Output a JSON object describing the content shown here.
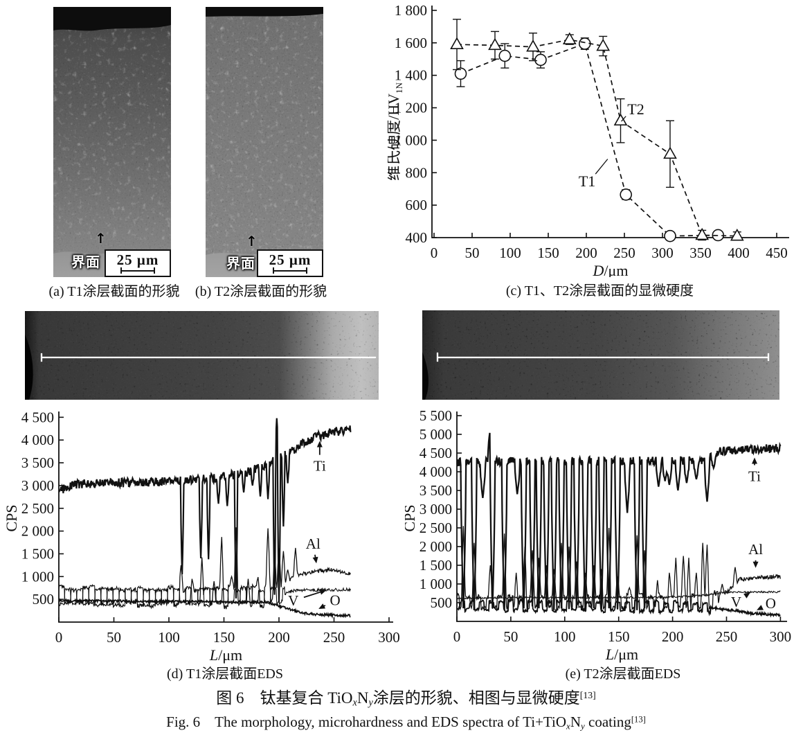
{
  "page": {
    "background": "#ffffff",
    "ink": "#111111"
  },
  "panels": {
    "a": {
      "caption": "(a) T1涂层截面的形貌",
      "interface_label": "界面",
      "scale_label": "25 μm"
    },
    "b": {
      "caption": "(b) T2涂层截面的形貌",
      "interface_label": "界面",
      "scale_label": "25 μm"
    },
    "c": {
      "caption": "(c) T1、T2涂层截面的显微硬度"
    },
    "d": {
      "caption": "(d) T1涂层截面EDS"
    },
    "e": {
      "caption": "(e) T2涂层截面EDS"
    }
  },
  "caption_zh": {
    "prefix": "图 6　钛基复合 TiO",
    "sub_x": "x",
    "nitrogen": "N",
    "sub_y": "y",
    "suffix": "涂层的形貌、相图与显微硬度",
    "ref": "[13]"
  },
  "caption_en": {
    "prefix": "Fig. 6　The morphology, microhardness and EDS spectra of Ti+TiO",
    "sub_x": "x",
    "nitrogen": "N",
    "sub_y": "y",
    "suffix": " coating",
    "ref": "[13]"
  },
  "chart_data": [
    {
      "type": "scatter-line",
      "panel": "c",
      "xlabel_var": "D",
      "xlabel_rest": "/μm",
      "ylabel": "维氏硬度/HV",
      "ylabel_sub": "1N",
      "xlim": [
        0,
        450
      ],
      "xticks": [
        0,
        50,
        100,
        150,
        200,
        250,
        300,
        350,
        400,
        450
      ],
      "ylim": [
        400,
        1800
      ],
      "yticks": [
        400,
        600,
        800,
        1000,
        1200,
        1400,
        1600,
        1800
      ],
      "ytick_labels": [
        "400",
        "600",
        "800",
        "1 000",
        "1 200",
        "1 400",
        "1 600",
        "1 800"
      ],
      "grid": false,
      "legend": "inline-annotations",
      "series": [
        {
          "name": "T1",
          "marker": "circle",
          "linestyle": "dashed",
          "x": [
            35,
            93,
            140,
            198,
            252,
            310,
            373
          ],
          "y": [
            1410,
            1520,
            1495,
            1595,
            665,
            410,
            415
          ],
          "yerr": [
            80,
            75,
            50,
            35,
            30,
            15,
            20
          ]
        },
        {
          "name": "T2",
          "marker": "triangle",
          "linestyle": "dashed",
          "x": [
            30,
            80,
            130,
            178,
            222,
            245,
            310,
            352,
            398
          ],
          "y": [
            1590,
            1585,
            1575,
            1620,
            1580,
            1120,
            915,
            415,
            410
          ],
          "yerr": [
            155,
            85,
            85,
            30,
            60,
            135,
            205,
            30,
            25
          ]
        }
      ],
      "annotations": [
        {
          "text": "T2",
          "x": 265,
          "y": 1190,
          "line": {
            "x1": 252,
            "y1": 1148,
            "x2": 246,
            "y2": 1116
          }
        },
        {
          "text": "T1",
          "x": 201,
          "y": 746,
          "line": {
            "x1": 212,
            "y1": 792,
            "x2": 228,
            "y2": 884
          }
        }
      ]
    },
    {
      "type": "line",
      "panel": "d",
      "xlabel_var": "L",
      "xlabel_rest": "/μm",
      "ylabel": "CPS",
      "xlim": [
        0,
        300
      ],
      "xticks": [
        0,
        50,
        100,
        150,
        200,
        250,
        300
      ],
      "ylim": [
        0,
        4600
      ],
      "yticks": [
        500,
        1000,
        1500,
        2000,
        2500,
        3000,
        3500,
        4000,
        4500
      ],
      "ytick_labels": [
        "500",
        "1 000",
        "1 500",
        "2 000",
        "2 500",
        "3 000",
        "3 500",
        "4 000",
        "4 500"
      ],
      "x_data_max": 265,
      "grid": false,
      "series": [
        {
          "name": "O",
          "lw": 1.8,
          "noise": 26,
          "keypoints": [
            [
              0,
              470
            ],
            [
              150,
              450
            ],
            [
              190,
              430
            ],
            [
              205,
              320
            ],
            [
              220,
              205
            ],
            [
              235,
              165
            ],
            [
              265,
              140
            ]
          ],
          "spikes": []
        },
        {
          "name": "V",
          "lw": 1.1,
          "noise": 35,
          "osc": {
            "amp": 165,
            "period": 11,
            "phase": 3.3,
            "until": 205
          },
          "keypoints": [
            [
              0,
              575
            ],
            [
              200,
              560
            ],
            [
              212,
              690
            ],
            [
              265,
              720
            ]
          ],
          "spikes": []
        },
        {
          "name": "Al",
          "lw": 1.3,
          "noise": 45,
          "osc": {
            "amp": 185,
            "period": 11,
            "phase": 0.2,
            "until": 196
          },
          "keypoints": [
            [
              0,
              555
            ],
            [
              190,
              560
            ],
            [
              206,
              880
            ],
            [
              216,
              1020
            ],
            [
              232,
              1120
            ],
            [
              248,
              1140
            ],
            [
              265,
              1060
            ]
          ],
          "spike_w": 1.6,
          "spikes": [
            [
              111,
              1250
            ],
            [
              121,
              950
            ],
            [
              130,
              1420
            ],
            [
              141,
              900
            ],
            [
              148,
              1870
            ],
            [
              157,
              1000
            ],
            [
              161,
              2080
            ],
            [
              172,
              950
            ],
            [
              181,
              990
            ],
            [
              190,
              2060
            ],
            [
              196,
              1500
            ],
            [
              200,
              1620
            ],
            [
              204,
              1560
            ],
            [
              208,
              1150
            ],
            [
              212,
              1000
            ],
            [
              215,
              1630
            ]
          ]
        },
        {
          "name": "Ti",
          "lw": 2.2,
          "noise": 100,
          "keypoints": [
            [
              0,
              2890
            ],
            [
              15,
              3030
            ],
            [
              60,
              3060
            ],
            [
              100,
              3090
            ],
            [
              140,
              3160
            ],
            [
              160,
              3240
            ],
            [
              175,
              3330
            ],
            [
              188,
              3460
            ],
            [
              200,
              3590
            ],
            [
              212,
              3760
            ],
            [
              222,
              3940
            ],
            [
              232,
              4060
            ],
            [
              248,
              4170
            ],
            [
              265,
              4240
            ]
          ],
          "spike_w": 1.4,
          "spikes": [
            [
              112,
              1050
            ],
            [
              129,
              1400
            ],
            [
              136,
              1380
            ],
            [
              145,
              2600
            ],
            [
              153,
              2550
            ],
            [
              161,
              520
            ],
            [
              168,
              2850
            ],
            [
              176,
              3000
            ],
            [
              183,
              2760
            ],
            [
              190,
              2700
            ],
            [
              196,
              600
            ],
            [
              198,
              4480
            ],
            [
              200,
              430
            ],
            [
              204,
              2100
            ],
            [
              208,
              3050
            ]
          ]
        }
      ],
      "annotations": [
        {
          "text": "Ti",
          "x": 237,
          "y": 3430,
          "tip_x": 237,
          "tip_y": 3980
        },
        {
          "text": "Al",
          "x": 231,
          "y": 1720,
          "tip_x": 234,
          "tip_y": 1290
        },
        {
          "text": "V",
          "x": 213,
          "y": 470,
          "tip_x": 243,
          "tip_y": 700
        },
        {
          "text": "O",
          "x": 251,
          "y": 480,
          "tip_x": 236,
          "tip_y": 290
        }
      ]
    },
    {
      "type": "line",
      "panel": "e",
      "xlabel_var": "L",
      "xlabel_rest": "/μm",
      "ylabel": "CPS",
      "xlim": [
        0,
        300
      ],
      "xticks": [
        0,
        50,
        100,
        150,
        200,
        250,
        300
      ],
      "ylim": [
        0,
        5600
      ],
      "yticks": [
        500,
        1000,
        1500,
        2000,
        2500,
        3000,
        3500,
        4000,
        4500,
        5000,
        5500
      ],
      "ytick_labels": [
        "500",
        "1 000",
        "1 500",
        "2 000",
        "2 500",
        "3 000",
        "3 500",
        "4 000",
        "4 500",
        "5 000",
        "5 500"
      ],
      "x_data_max": 300,
      "grid": false,
      "series": [
        {
          "name": "O",
          "lw": 1.8,
          "noise": 35,
          "osc": {
            "amp": 115,
            "period": 9,
            "phase": 4.4,
            "until": 235
          },
          "keypoints": [
            [
              0,
              430
            ],
            [
              180,
              400
            ],
            [
              230,
              380
            ],
            [
              255,
              300
            ],
            [
              270,
              225
            ],
            [
              300,
              170
            ]
          ],
          "spikes": []
        },
        {
          "name": "V",
          "lw": 1.1,
          "noise": 25,
          "keypoints": [
            [
              0,
              625
            ],
            [
              200,
              645
            ],
            [
              230,
              700
            ],
            [
              250,
              780
            ],
            [
              300,
              790
            ]
          ],
          "spikes": []
        },
        {
          "name": "Al",
          "lw": 1.3,
          "noise": 55,
          "osc": {
            "amp": 150,
            "period": 10,
            "phase": 1.6,
            "until": 243
          },
          "keypoints": [
            [
              0,
              520
            ],
            [
              235,
              520
            ],
            [
              252,
              820
            ],
            [
              262,
              1120
            ],
            [
              280,
              1180
            ],
            [
              300,
              1190
            ]
          ],
          "spike_w": 1.6,
          "spikes": [
            [
              6,
              2550
            ],
            [
              16,
              2100
            ],
            [
              31,
              1500
            ],
            [
              44,
              2350
            ],
            [
              55,
              1300
            ],
            [
              63,
              2000
            ],
            [
              70,
              1900
            ],
            [
              76,
              1700
            ],
            [
              83,
              1500
            ],
            [
              90,
              1400
            ],
            [
              97,
              2100
            ],
            [
              104,
              2000
            ],
            [
              111,
              1600
            ],
            [
              119,
              1300
            ],
            [
              127,
              1500
            ],
            [
              134,
              1400
            ],
            [
              141,
              2500
            ],
            [
              149,
              1200
            ],
            [
              160,
              900
            ],
            [
              167,
              2300
            ],
            [
              174,
              1900
            ],
            [
              186,
              1100
            ],
            [
              197,
              1300
            ],
            [
              203,
              1700
            ],
            [
              210,
              1750
            ],
            [
              215,
              1700
            ],
            [
              222,
              1300
            ],
            [
              228,
              2100
            ],
            [
              232,
              2050
            ],
            [
              246,
              1000
            ],
            [
              258,
              1450
            ]
          ]
        },
        {
          "name": "Ti",
          "lw": 2.3,
          "noise": 120,
          "keypoints": [
            [
              0,
              4260
            ],
            [
              100,
              4280
            ],
            [
              200,
              4300
            ],
            [
              230,
              4320
            ],
            [
              243,
              4560
            ],
            [
              300,
              4630
            ]
          ],
          "spike_w": 2.4,
          "spikes": [
            [
              6,
              350
            ],
            [
              16,
              300
            ],
            [
              24,
              3300
            ],
            [
              31,
              5150
            ],
            [
              33,
              350
            ],
            [
              44,
              320
            ],
            [
              56,
              3400
            ],
            [
              62,
              350
            ],
            [
              70,
              400
            ],
            [
              76,
              350
            ],
            [
              83,
              380
            ],
            [
              90,
              300
            ],
            [
              97,
              350
            ],
            [
              104,
              330
            ],
            [
              111,
              350
            ],
            [
              119,
              320
            ],
            [
              127,
              350
            ],
            [
              134,
              330
            ],
            [
              141,
              350
            ],
            [
              149,
              320
            ],
            [
              158,
              2900
            ],
            [
              167,
              300
            ],
            [
              174,
              350
            ],
            [
              187,
              3600
            ],
            [
              193,
              3750
            ],
            [
              197,
              3650
            ],
            [
              205,
              3500
            ],
            [
              213,
              3700
            ],
            [
              222,
              3800
            ],
            [
              232,
              3200
            ],
            [
              238,
              4100
            ]
          ]
        }
      ],
      "annotations": [
        {
          "text": "Ti",
          "x": 276,
          "y": 3880,
          "tip_x": 276,
          "tip_y": 4380
        },
        {
          "text": "Al",
          "x": 277,
          "y": 1930,
          "tip_x": 277,
          "tip_y": 1430
        },
        {
          "text": "V",
          "x": 259,
          "y": 520,
          "tip_x": 272,
          "tip_y": 770
        },
        {
          "text": "O",
          "x": 291,
          "y": 480,
          "tip_x": 278,
          "tip_y": 300
        }
      ]
    }
  ]
}
